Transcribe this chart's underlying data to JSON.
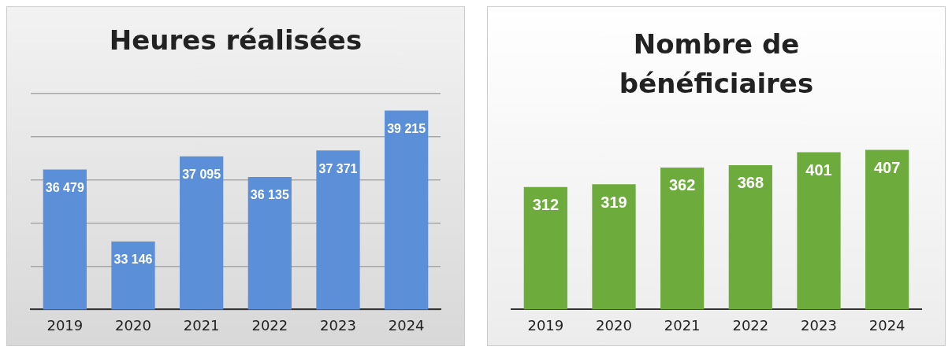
{
  "chart_data": [
    {
      "type": "bar",
      "title": "Heures réalisées",
      "categories": [
        "2019",
        "2020",
        "2021",
        "2022",
        "2023",
        "2024"
      ],
      "values": [
        36479,
        33146,
        37095,
        36135,
        37371,
        39215
      ],
      "value_labels": [
        "36 479",
        "33 146",
        "37 095",
        "36 135",
        "37 371",
        "39 215"
      ],
      "color": "#5b8fd8",
      "ylim": [
        30000,
        40000
      ],
      "yticks": [
        {
          "value": 30000,
          "label": null
        },
        {
          "value": 32000,
          "label": null
        },
        {
          "value": 34000,
          "label": null
        },
        {
          "value": 36000,
          "label": null
        },
        {
          "value": 38000,
          "label": null
        },
        {
          "value": 40000,
          "label": null
        }
      ],
      "grid": "y",
      "tick_labels": "x"
    },
    {
      "type": "bar",
      "title": "Nombre de bénéficiaires",
      "categories": [
        "2019",
        "2020",
        "2021",
        "2022",
        "2023",
        "2024"
      ],
      "values": [
        312,
        319,
        362,
        368,
        401,
        407
      ],
      "data_labels": true,
      "color": "#6cab3c",
      "tick_labels": "x"
    }
  ]
}
